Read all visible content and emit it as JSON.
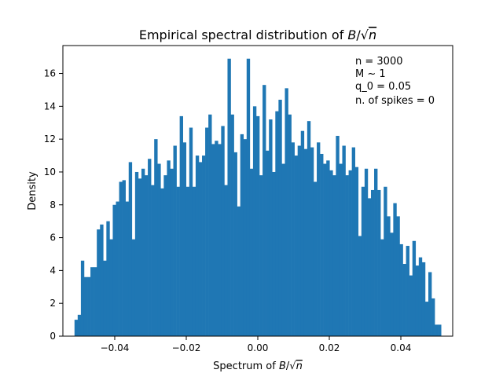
{
  "chart_data": {
    "type": "bar",
    "title": "Empirical spectral distribution of B/√n",
    "title_parts": {
      "prefix": "Empirical spectral distribution of ",
      "var": "B",
      "slash": "/",
      "sqrt": "√",
      "n": "n"
    },
    "xlabel": "Spectrum of B/√n",
    "xlabel_parts": {
      "prefix": "Spectrum of ",
      "var": "B",
      "slash": "/",
      "sqrt": "√",
      "n": "n"
    },
    "ylabel": "Density",
    "xlim": [
      -0.0545,
      0.0545
    ],
    "ylim": [
      0,
      17.7
    ],
    "x_ticks": [
      -0.04,
      -0.02,
      0.0,
      0.02,
      0.04
    ],
    "x_tick_labels": [
      "−0.04",
      "−0.02",
      "0.00",
      "0.02",
      "0.04"
    ],
    "y_ticks": [
      0,
      2,
      4,
      6,
      8,
      10,
      12,
      14,
      16
    ],
    "y_tick_labels": [
      "0",
      "2",
      "4",
      "6",
      "8",
      "10",
      "12",
      "14",
      "16"
    ],
    "grid": false,
    "bar_color": "#1f77b4",
    "bin_start": -0.05125,
    "bin_end": 0.05125,
    "values": [
      1.0,
      1.3,
      4.6,
      3.6,
      3.6,
      4.2,
      4.2,
      6.5,
      6.8,
      4.6,
      7.0,
      5.9,
      8.0,
      8.2,
      9.4,
      9.5,
      8.2,
      10.6,
      5.9,
      10.0,
      9.6,
      10.2,
      9.8,
      10.8,
      9.2,
      12.0,
      10.5,
      9.0,
      9.8,
      10.7,
      10.2,
      11.6,
      9.1,
      13.4,
      11.8,
      9.1,
      12.7,
      9.1,
      11.0,
      10.6,
      11.0,
      12.7,
      13.5,
      11.7,
      11.9,
      11.7,
      12.8,
      9.2,
      16.9,
      13.5,
      11.2,
      7.9,
      12.3,
      12.0,
      16.9,
      10.2,
      14.0,
      13.4,
      9.8,
      15.3,
      11.3,
      13.2,
      10.0,
      13.7,
      14.4,
      10.5,
      15.1,
      13.5,
      11.8,
      11.0,
      11.6,
      12.5,
      11.4,
      13.1,
      11.5,
      9.4,
      11.8,
      11.1,
      10.5,
      10.7,
      10.1,
      9.8,
      12.2,
      10.5,
      11.6,
      9.8,
      10.1,
      11.5,
      10.3,
      6.1,
      9.1,
      10.2,
      8.4,
      8.9,
      10.2,
      8.9,
      5.9,
      9.1,
      7.3,
      6.3,
      8.1,
      7.3,
      5.6,
      4.4,
      5.5,
      3.7,
      5.8,
      4.3,
      4.8,
      4.5,
      2.1,
      3.9,
      2.3,
      0.7,
      0.7
    ],
    "annotations": [
      "n = 3000",
      "M ~ 1",
      "q_0 = 0.05",
      "n. of spikes = 0"
    ]
  }
}
